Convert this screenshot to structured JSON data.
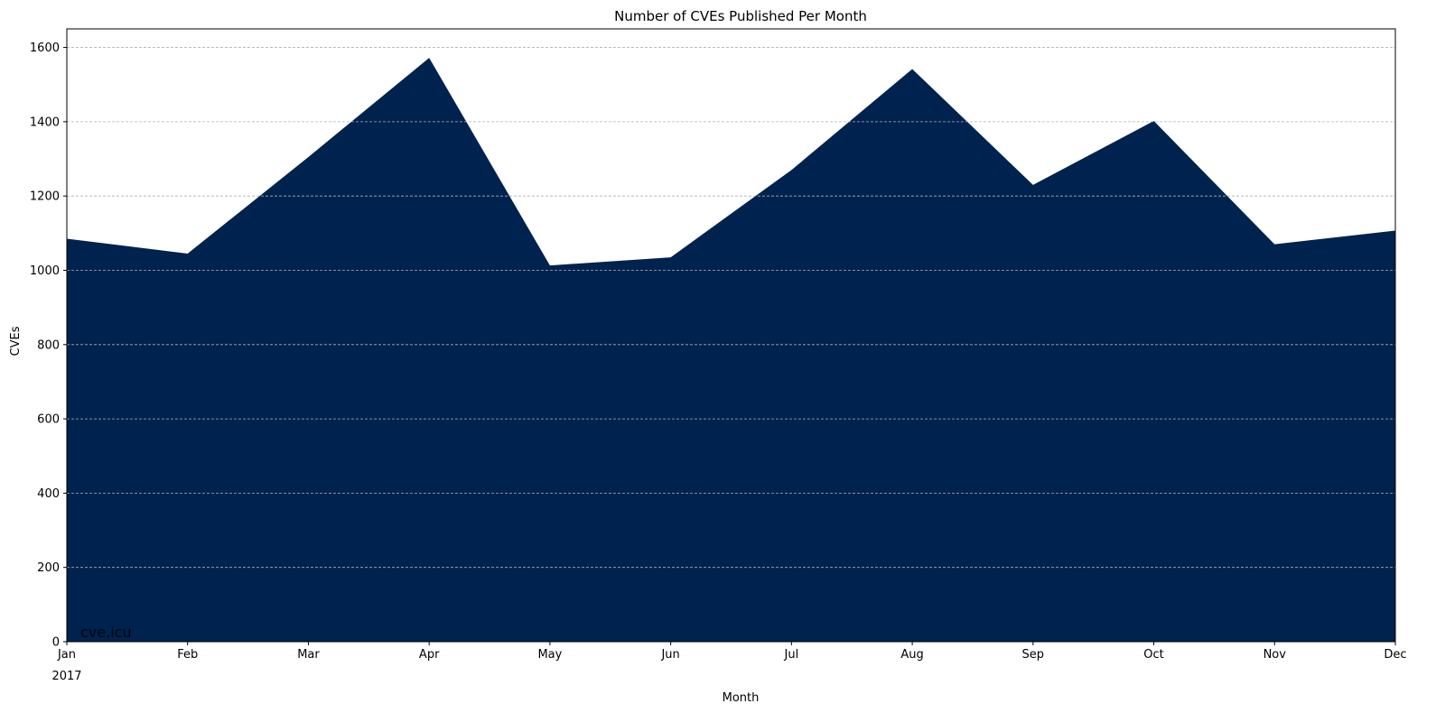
{
  "chart_data": {
    "type": "area",
    "title": "Number of CVEs Published Per Month",
    "xlabel": "Month",
    "ylabel": "CVEs",
    "year_label": "2017",
    "watermark": "cve.icu",
    "categories": [
      "Jan",
      "Feb",
      "Mar",
      "Apr",
      "May",
      "Jun",
      "Jul",
      "Aug",
      "Sep",
      "Oct",
      "Nov",
      "Dec"
    ],
    "values": [
      1085,
      1045,
      1305,
      1572,
      1013,
      1035,
      1270,
      1542,
      1230,
      1402,
      1070,
      1107
    ],
    "ylim": [
      0,
      1650
    ],
    "yticks": [
      0,
      200,
      400,
      600,
      800,
      1000,
      1200,
      1400,
      1600
    ],
    "grid": "horizontal dashed",
    "fill_color": "#00224e",
    "grid_color": "#b0b0b0",
    "watermark_color": "#5a6a80"
  }
}
